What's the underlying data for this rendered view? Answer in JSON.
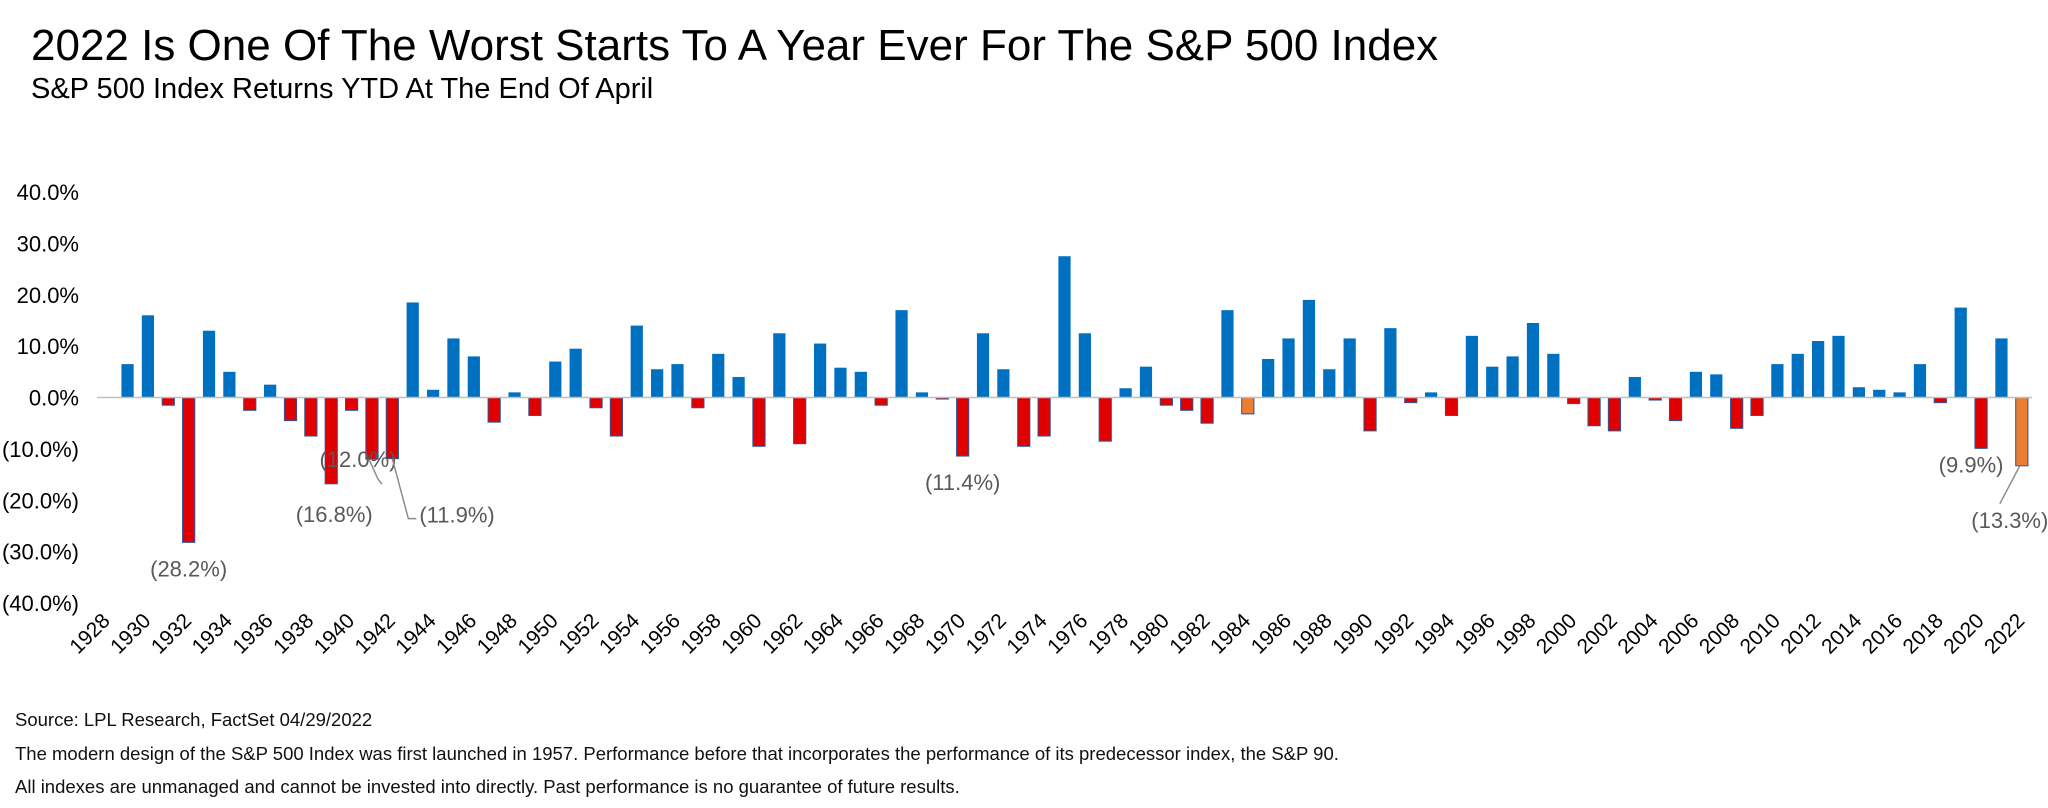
{
  "header": {
    "title": "2022 Is One Of The Worst Starts To A Year Ever For The S&P 500 Index",
    "subtitle": "S&P 500 Index Returns YTD At The End Of April"
  },
  "footnotes": {
    "source": "Source: LPL Research, FactSet 04/29/2022",
    "note1": "The modern design of the S&P 500 Index was first launched in 1957. Performance before that incorporates the performance of its predecessor index, the S&P 90.",
    "note2": "All indexes are unmanaged and cannot be invested into directly. Past performance is no guarantee of future results."
  },
  "colors": {
    "positive": "#0070c0",
    "negative": "#e00000",
    "highlight": "#ed7d31",
    "leader": "#8c8c8c",
    "axis": "#bfbfbf"
  },
  "chart_data": {
    "type": "bar",
    "title": "2022 Is One Of The Worst Starts To A Year Ever For The S&P 500 Index",
    "subtitle": "S&P 500 Index Returns YTD At The End Of April",
    "ylim": [
      -40,
      40
    ],
    "y_ticks": [
      40,
      30,
      20,
      10,
      0,
      -10,
      -20,
      -30,
      -40
    ],
    "y_tick_labels": [
      "40.0%",
      "30.0%",
      "20.0%",
      "10.0%",
      "0.0%",
      "(10.0%)",
      "(20.0%)",
      "(30.0%)",
      "(40.0%)"
    ],
    "grid": false,
    "x_tick_labels": [
      "1928",
      "1930",
      "1932",
      "1934",
      "1936",
      "1938",
      "1940",
      "1942",
      "1944",
      "1946",
      "1948",
      "1950",
      "1952",
      "1954",
      "1956",
      "1958",
      "1960",
      "1962",
      "1964",
      "1966",
      "1968",
      "1970",
      "1972",
      "1974",
      "1976",
      "1978",
      "1980",
      "1982",
      "1984",
      "1986",
      "1988",
      "1990",
      "1992",
      "1994",
      "1996",
      "1998",
      "2000",
      "2002",
      "2004",
      "2006",
      "2008",
      "2010",
      "2012",
      "2014",
      "2016",
      "2018",
      "2020",
      "2022"
    ],
    "categories": [
      "1928",
      "1929",
      "1930",
      "1931",
      "1932",
      "1933",
      "1934",
      "1935",
      "1936",
      "1937",
      "1938",
      "1939",
      "1940",
      "1941",
      "1942",
      "1943",
      "1944",
      "1945",
      "1946",
      "1947",
      "1948",
      "1949",
      "1950",
      "1951",
      "1952",
      "1953",
      "1954",
      "1955",
      "1956",
      "1957",
      "1958",
      "1959",
      "1960",
      "1961",
      "1962",
      "1963",
      "1964",
      "1965",
      "1966",
      "1967",
      "1968",
      "1969",
      "1970",
      "1971",
      "1972",
      "1973",
      "1974",
      "1975",
      "1976",
      "1977",
      "1978",
      "1979",
      "1980",
      "1981",
      "1982",
      "1983",
      "1984",
      "1985",
      "1986",
      "1987",
      "1988",
      "1989",
      "1990",
      "1991",
      "1992",
      "1993",
      "1994",
      "1995",
      "1996",
      "1997",
      "1998",
      "1999",
      "2000",
      "2001",
      "2002",
      "2003",
      "2004",
      "2005",
      "2006",
      "2007",
      "2008",
      "2009",
      "2010",
      "2011",
      "2012",
      "2013",
      "2014",
      "2015",
      "2016",
      "2017",
      "2018",
      "2019",
      "2020",
      "2021",
      "2022"
    ],
    "values": [
      0.0,
      6.5,
      16.0,
      -1.5,
      -28.2,
      13.0,
      5.0,
      -2.5,
      2.5,
      -4.5,
      -7.5,
      -16.8,
      -2.5,
      -12.0,
      -11.9,
      18.5,
      1.5,
      11.5,
      8.0,
      -4.8,
      1.0,
      -3.5,
      7.0,
      9.5,
      -2.0,
      -7.5,
      14.0,
      5.5,
      6.5,
      -2.0,
      8.5,
      4.0,
      -9.5,
      12.5,
      -9.0,
      10.5,
      5.8,
      5.0,
      -1.5,
      17.0,
      1.0,
      -0.3,
      -11.4,
      12.5,
      5.5,
      -9.5,
      -7.5,
      27.5,
      12.5,
      -8.5,
      1.8,
      6.0,
      -1.5,
      -2.5,
      -5.0,
      17.0,
      -3.2,
      7.5,
      11.5,
      19.0,
      5.5,
      11.5,
      -6.5,
      13.5,
      -1.0,
      1.0,
      -3.5,
      12.0,
      6.0,
      8.0,
      14.5,
      8.5,
      -1.2,
      -5.5,
      -6.5,
      4.0,
      -0.5,
      -4.5,
      5.0,
      4.5,
      -6.0,
      -3.5,
      6.5,
      8.5,
      11.0,
      12.0,
      2.0,
      1.5,
      1.0,
      6.5,
      -1.0,
      17.5,
      -9.9,
      11.5,
      -13.3
    ],
    "highlight": [
      "1984",
      "2022"
    ],
    "annotations": [
      {
        "year": "1932",
        "text": "(28.2%)"
      },
      {
        "year": "1939",
        "text": "(16.8%)"
      },
      {
        "year": "1941",
        "text": "(12.0%)"
      },
      {
        "year": "1942",
        "text": "(11.9%)"
      },
      {
        "year": "1970",
        "text": "(11.4%)"
      },
      {
        "year": "2020",
        "text": "(9.9%)"
      },
      {
        "year": "2022",
        "text": "(13.3%)"
      }
    ]
  }
}
